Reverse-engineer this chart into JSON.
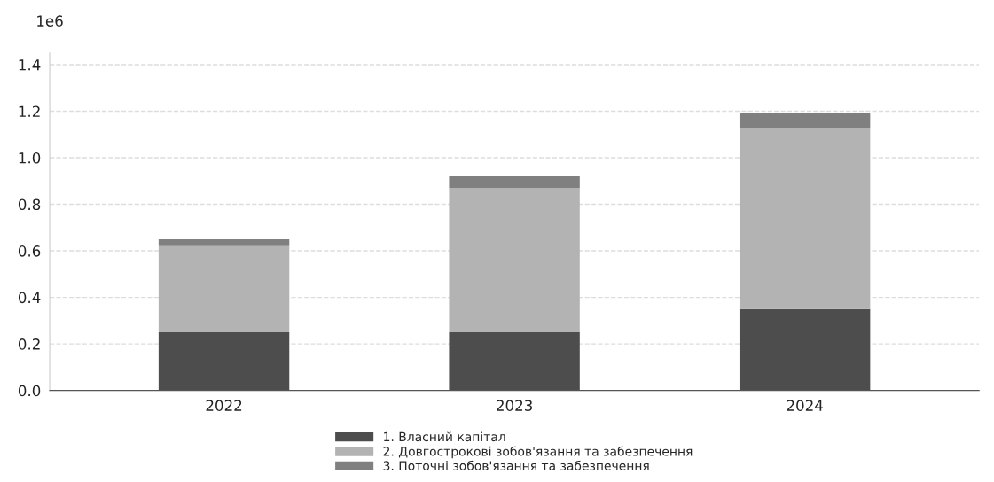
{
  "chart_data": {
    "type": "bar",
    "stacked": true,
    "categories": [
      "2022",
      "2023",
      "2024"
    ],
    "series": [
      {
        "name": "1. Власний капітал",
        "color": "#4d4d4d",
        "values": [
          0.25,
          0.25,
          0.35
        ]
      },
      {
        "name": "2. Довгострокові зобов'язання та забезпечення",
        "color": "#b3b3b3",
        "values": [
          0.37,
          0.62,
          0.78
        ]
      },
      {
        "name": "3. Поточні зобов'язання та забезпечення",
        "color": "#808080",
        "values": [
          0.03,
          0.05,
          0.06
        ]
      }
    ],
    "ylim": [
      0,
      1.45
    ],
    "yticks": [
      {
        "value": 0,
        "label": "0.0"
      },
      0.2,
      0.4,
      0.6,
      0.8,
      {
        "value": 1,
        "label": "1.0"
      },
      1.2,
      1.4
    ],
    "annotations": [
      "1e6"
    ],
    "grid": "y",
    "legend": "bottom"
  }
}
